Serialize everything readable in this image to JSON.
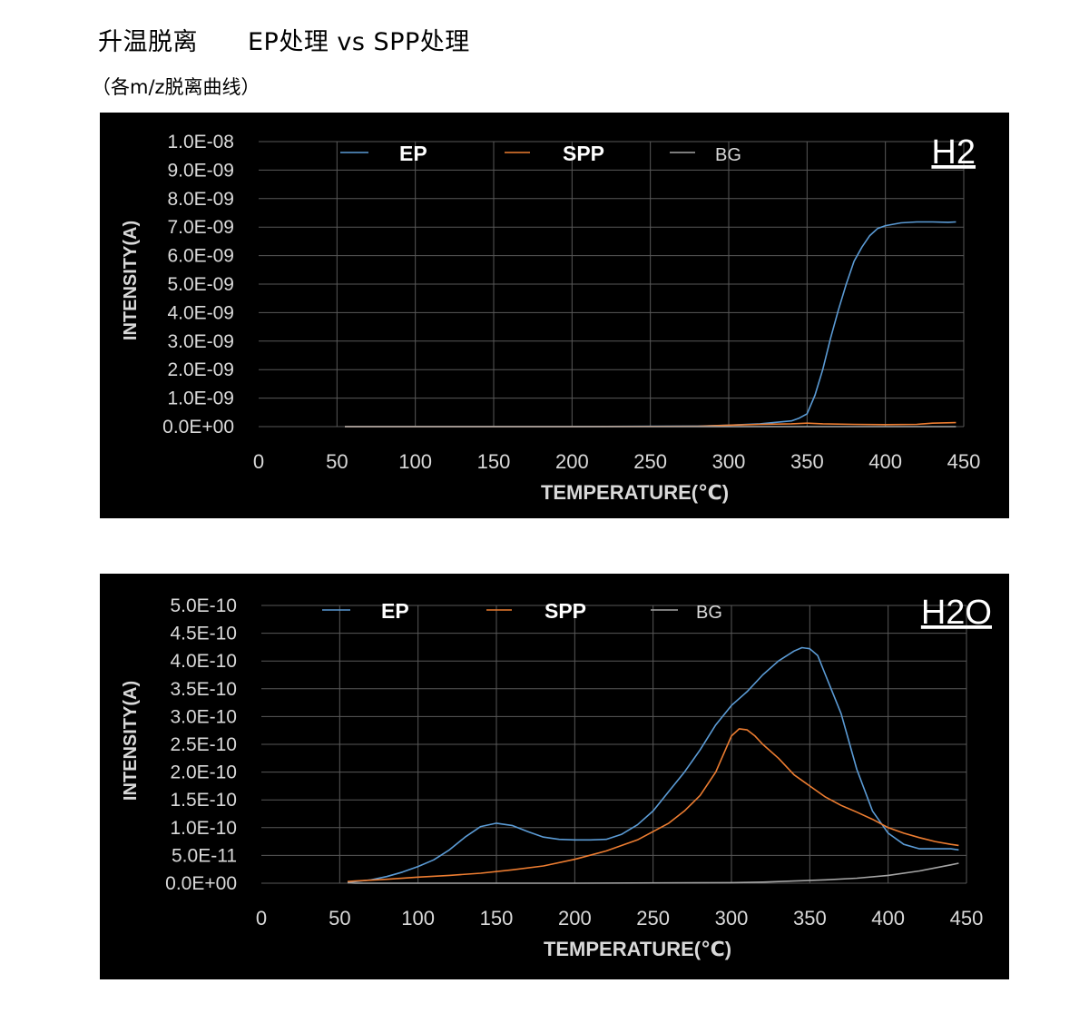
{
  "page": {
    "title": "升温脱离　　EP处理 vs SPP处理",
    "subtitle": "（各m/z脱离曲线）"
  },
  "colors": {
    "EP": "#5b9bd5",
    "SPP": "#ed7d31",
    "BG": "#a5a5a5",
    "panel_background": "#000000",
    "grid": "#595959",
    "text": "#d9d9d9"
  },
  "chart_data": [
    {
      "type": "line",
      "title": "H2",
      "xlabel": "TEMPERATURE(℃)",
      "ylabel": "INTENSITY(A)",
      "xlim": [
        0,
        450
      ],
      "ylim": [
        0,
        1e-08
      ],
      "x_ticks": [
        "0",
        "50",
        "100",
        "150",
        "200",
        "250",
        "300",
        "350",
        "400",
        "450"
      ],
      "y_ticks": [
        "0.0E+00",
        "1.0E-09",
        "2.0E-09",
        "3.0E-09",
        "4.0E-09",
        "5.0E-09",
        "6.0E-09",
        "7.0E-09",
        "8.0E-09",
        "9.0E-09",
        "1.0E-08"
      ],
      "grid": true,
      "legend_position": "top",
      "series": [
        {
          "name": "EP",
          "color_key": "EP",
          "x": [
            55,
            100,
            200,
            280,
            300,
            320,
            330,
            340,
            345,
            350,
            355,
            360,
            365,
            370,
            375,
            380,
            385,
            390,
            395,
            400,
            410,
            420,
            430,
            440,
            445
          ],
          "y": [
            0,
            0,
            0,
            2e-11,
            5e-11,
            1e-10,
            1.5e-10,
            2e-10,
            3e-10,
            4.5e-10,
            1.1e-09,
            2e-09,
            3.1e-09,
            4.1e-09,
            5e-09,
            5.8e-09,
            6.3e-09,
            6.7e-09,
            6.95e-09,
            7.05e-09,
            7.15e-09,
            7.18e-09,
            7.18e-09,
            7.17e-09,
            7.18e-09
          ]
        },
        {
          "name": "SPP",
          "color_key": "SPP",
          "x": [
            55,
            100,
            200,
            280,
            300,
            320,
            340,
            350,
            360,
            380,
            400,
            420,
            430,
            445
          ],
          "y": [
            0,
            0,
            0,
            1e-11,
            5e-11,
            8e-11,
            1e-10,
            1.2e-10,
            1e-10,
            8e-11,
            7e-11,
            8e-11,
            1.2e-10,
            1.4e-10
          ]
        },
        {
          "name": "BG",
          "color_key": "BG",
          "x": [
            55,
            100,
            200,
            300,
            350,
            400,
            445
          ],
          "y": [
            0,
            0,
            0,
            0,
            0,
            0,
            0
          ]
        }
      ]
    },
    {
      "type": "line",
      "title": "H2O",
      "xlabel": "TEMPERATURE(℃)",
      "ylabel": "INTENSITY(A)",
      "xlim": [
        0,
        450
      ],
      "ylim": [
        0,
        5e-10
      ],
      "x_ticks": [
        "0",
        "50",
        "100",
        "150",
        "200",
        "250",
        "300",
        "350",
        "400",
        "450"
      ],
      "y_ticks": [
        "0.0E+00",
        "5.0E-11",
        "1.0E-10",
        "1.5E-10",
        "2.0E-10",
        "2.5E-10",
        "3.0E-10",
        "3.5E-10",
        "4.0E-10",
        "4.5E-10",
        "5.0E-10"
      ],
      "grid": true,
      "legend_position": "top",
      "series": [
        {
          "name": "EP",
          "color_key": "EP",
          "x": [
            55,
            60,
            70,
            80,
            90,
            100,
            110,
            120,
            130,
            140,
            150,
            160,
            170,
            180,
            190,
            200,
            210,
            220,
            230,
            240,
            250,
            260,
            270,
            280,
            290,
            300,
            310,
            320,
            330,
            340,
            345,
            350,
            355,
            360,
            370,
            380,
            390,
            400,
            410,
            420,
            430,
            440,
            445
          ],
          "y": [
            2e-12,
            3e-12,
            6e-12,
            1.2e-11,
            2e-11,
            3e-11,
            4.2e-11,
            6e-11,
            8.3e-11,
            1.02e-10,
            1.08e-10,
            1.04e-10,
            9.3e-11,
            8.3e-11,
            7.9e-11,
            7.8e-11,
            7.8e-11,
            7.9e-11,
            8.8e-11,
            1.05e-10,
            1.3e-10,
            1.65e-10,
            2e-10,
            2.4e-10,
            2.85e-10,
            3.2e-10,
            3.45e-10,
            3.75e-10,
            4e-10,
            4.18e-10,
            4.24e-10,
            4.22e-10,
            4.1e-10,
            3.75e-10,
            3.05e-10,
            2.05e-10,
            1.3e-10,
            9e-11,
            7e-11,
            6.2e-11,
            6.2e-11,
            6.2e-11,
            6e-11
          ]
        },
        {
          "name": "SPP",
          "color_key": "SPP",
          "x": [
            55,
            60,
            80,
            100,
            120,
            140,
            160,
            180,
            200,
            220,
            240,
            260,
            270,
            280,
            290,
            300,
            305,
            310,
            315,
            320,
            330,
            340,
            350,
            360,
            370,
            380,
            390,
            400,
            410,
            420,
            430,
            440,
            445
          ],
          "y": [
            3e-12,
            4e-12,
            7e-12,
            1.1e-11,
            1.4e-11,
            1.8e-11,
            2.4e-11,
            3.1e-11,
            4.3e-11,
            5.8e-11,
            7.8e-11,
            1.08e-10,
            1.3e-10,
            1.58e-10,
            2e-10,
            2.65e-10,
            2.78e-10,
            2.76e-10,
            2.65e-10,
            2.5e-10,
            2.25e-10,
            1.95e-10,
            1.75e-10,
            1.55e-10,
            1.4e-10,
            1.28e-10,
            1.15e-10,
            1e-10,
            9e-11,
            8.2e-11,
            7.5e-11,
            7e-11,
            6.8e-11
          ]
        },
        {
          "name": "BG",
          "color_key": "BG",
          "x": [
            55,
            60,
            100,
            200,
            300,
            320,
            340,
            360,
            380,
            400,
            420,
            440,
            445
          ],
          "y": [
            1e-12,
            0.0,
            0.0,
            0.0,
            1e-12,
            2e-12,
            4e-12,
            6e-12,
            9e-12,
            1.4e-11,
            2.2e-11,
            3.3e-11,
            3.6e-11
          ]
        }
      ]
    }
  ]
}
